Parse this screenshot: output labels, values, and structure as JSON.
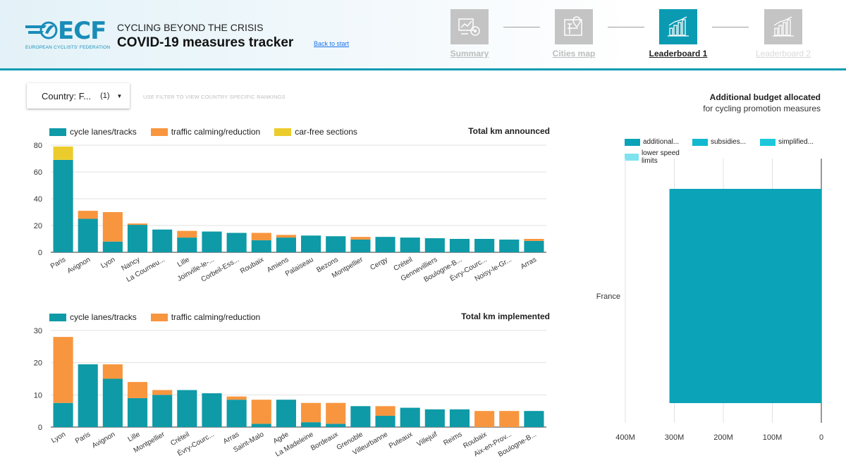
{
  "header": {
    "logo_text": "ECF",
    "logo_subtitle": "EUROPEAN CYCLISTS' FEDERATION",
    "kicker": "CYCLING BEYOND THE CRISIS",
    "title": "COVID-19 measures tracker",
    "back_link": "Back to start"
  },
  "nav": [
    {
      "label": "Summary",
      "icon": "summary-icon",
      "state": "inactive"
    },
    {
      "label": "Cities map",
      "icon": "city-map-icon",
      "state": "inactive"
    },
    {
      "label": "Leaderboard 1",
      "icon": "bar-chart-icon",
      "state": "active"
    },
    {
      "label": "Leaderboard 2",
      "icon": "bar-chart-icon",
      "state": "dim"
    }
  ],
  "filter": {
    "label": "Country: F...",
    "count": "(1)",
    "hint": "USE FILTER TO VIEW COUNTRY SPECIFIC RANKINGS"
  },
  "colors": {
    "cycle": "#0e9aa7",
    "calming": "#f8963f",
    "carfree": "#eccc2c",
    "budget1": "#0aa3b8",
    "budget2": "#12b8cf",
    "budget3": "#1cc7dc",
    "budget4": "#7fe3ef",
    "accent": "#0a9bb3"
  },
  "chart_data": [
    {
      "type": "bar",
      "stacked": true,
      "title": "Total km announced",
      "categories": [
        "Paris",
        "Avignon",
        "Lyon",
        "Nancy",
        "La Courneu...",
        "Lille",
        "Joinville-le-...",
        "Corbeil-Ess...",
        "Roubaix",
        "Amiens",
        "Palaiseau",
        "Bezons",
        "Montpellier",
        "Cergy",
        "Créteil",
        "Gennevilliers",
        "Boulogne-B...",
        "Évry-Courc...",
        "Noisy-le-Gr...",
        "Arras"
      ],
      "series": [
        {
          "name": "cycle lanes/tracks",
          "values": [
            69,
            25,
            8,
            20.5,
            17,
            11,
            15.5,
            14.5,
            9,
            11,
            12.5,
            12,
            9.5,
            11.5,
            11,
            10.5,
            10,
            10,
            9.5,
            8.5
          ]
        },
        {
          "name": "traffic calming/reduction",
          "values": [
            0,
            6,
            22,
            1,
            0,
            5,
            0,
            0,
            5.5,
            2,
            0,
            0,
            2,
            0,
            0,
            0,
            0,
            0,
            0,
            1.5
          ]
        },
        {
          "name": "car-free sections",
          "values": [
            10,
            0,
            0,
            0,
            0,
            0,
            0,
            0,
            0,
            0,
            0,
            0,
            0,
            0,
            0,
            0,
            0,
            0,
            0,
            0
          ]
        }
      ],
      "ylim": [
        0,
        80
      ],
      "yticks": [
        0,
        20,
        40,
        60,
        80
      ],
      "grid": true,
      "legend": "top-left"
    },
    {
      "type": "bar",
      "stacked": true,
      "title": "Total km implemented",
      "categories": [
        "Lyon",
        "Paris",
        "Avignon",
        "Lille",
        "Montpellier",
        "Créteil",
        "Évry-Courc...",
        "Arras",
        "Saint-Malo",
        "Agde",
        "La Madeleine",
        "Bordeaux",
        "Grenoble",
        "Villeurbanne",
        "Puteaux",
        "Villejuif",
        "Reims",
        "Roubaix",
        "Aix-en-Prov...",
        "Boulogne-B..."
      ],
      "series": [
        {
          "name": "cycle lanes/tracks",
          "values": [
            7.5,
            19.5,
            15,
            9,
            10,
            11.5,
            10.5,
            8.5,
            1,
            8.5,
            1.5,
            1,
            6.5,
            3.5,
            6,
            5.5,
            5.5,
            0,
            0,
            5
          ]
        },
        {
          "name": "traffic calming/reduction",
          "values": [
            20.5,
            0,
            4.5,
            5,
            1.5,
            0,
            0,
            1,
            7.5,
            0,
            6,
            6.5,
            0,
            3,
            0,
            0,
            0,
            5,
            5,
            0
          ]
        }
      ],
      "ylim": [
        0,
        30
      ],
      "yticks": [
        0,
        10,
        20,
        30
      ],
      "grid": true,
      "legend": "top-left"
    },
    {
      "type": "bar",
      "orientation": "horizontal",
      "title": "Additional budget allocated",
      "subtitle": "for cycling promotion measures",
      "categories": [
        "France"
      ],
      "series": [
        {
          "name": "additional...",
          "values": [
            310000000
          ]
        },
        {
          "name": "subsidies...",
          "values": [
            0
          ]
        },
        {
          "name": "simplified...",
          "values": [
            0
          ]
        },
        {
          "name": "lower speed limits",
          "values": [
            0
          ]
        }
      ],
      "xlim": [
        400000000,
        0
      ],
      "xticks": [
        {
          "v": 400000000,
          "label": "400M"
        },
        {
          "v": 300000000,
          "label": "300M"
        },
        {
          "v": 200000000,
          "label": "200M"
        },
        {
          "v": 100000000,
          "label": "100M"
        },
        {
          "v": 0,
          "label": "0"
        }
      ],
      "grid": true,
      "legend": "top"
    }
  ]
}
